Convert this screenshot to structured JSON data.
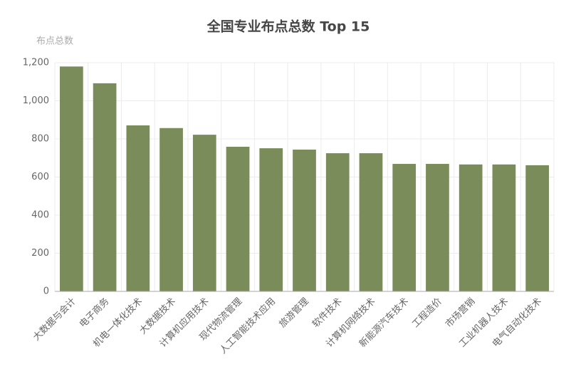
{
  "chart_data": {
    "type": "bar",
    "title": "全国专业布点总数 Top 15",
    "y_label": "布点总数",
    "categories": [
      "大数据与会计",
      "电子商务",
      "机电一体化技术",
      "大数据技术",
      "计算机应用技术",
      "现代物流管理",
      "人工智能技术应用",
      "旅游管理",
      "软件技术",
      "计算机网络技术",
      "新能源汽车技术",
      "工程造价",
      "市场营销",
      "工业机器人技术",
      "电气自动化技术"
    ],
    "values": [
      1180,
      1092,
      871,
      857,
      822,
      759,
      751,
      744,
      725,
      725,
      669,
      669,
      666,
      666,
      662
    ],
    "color": "#7a8c5a",
    "ylim": [
      0,
      1200
    ],
    "yticks": [
      0,
      200,
      400,
      600,
      800,
      {
        "value": 1000,
        "label": "1,000"
      },
      {
        "value": 1200,
        "label": "1,200"
      }
    ],
    "grid": true
  }
}
